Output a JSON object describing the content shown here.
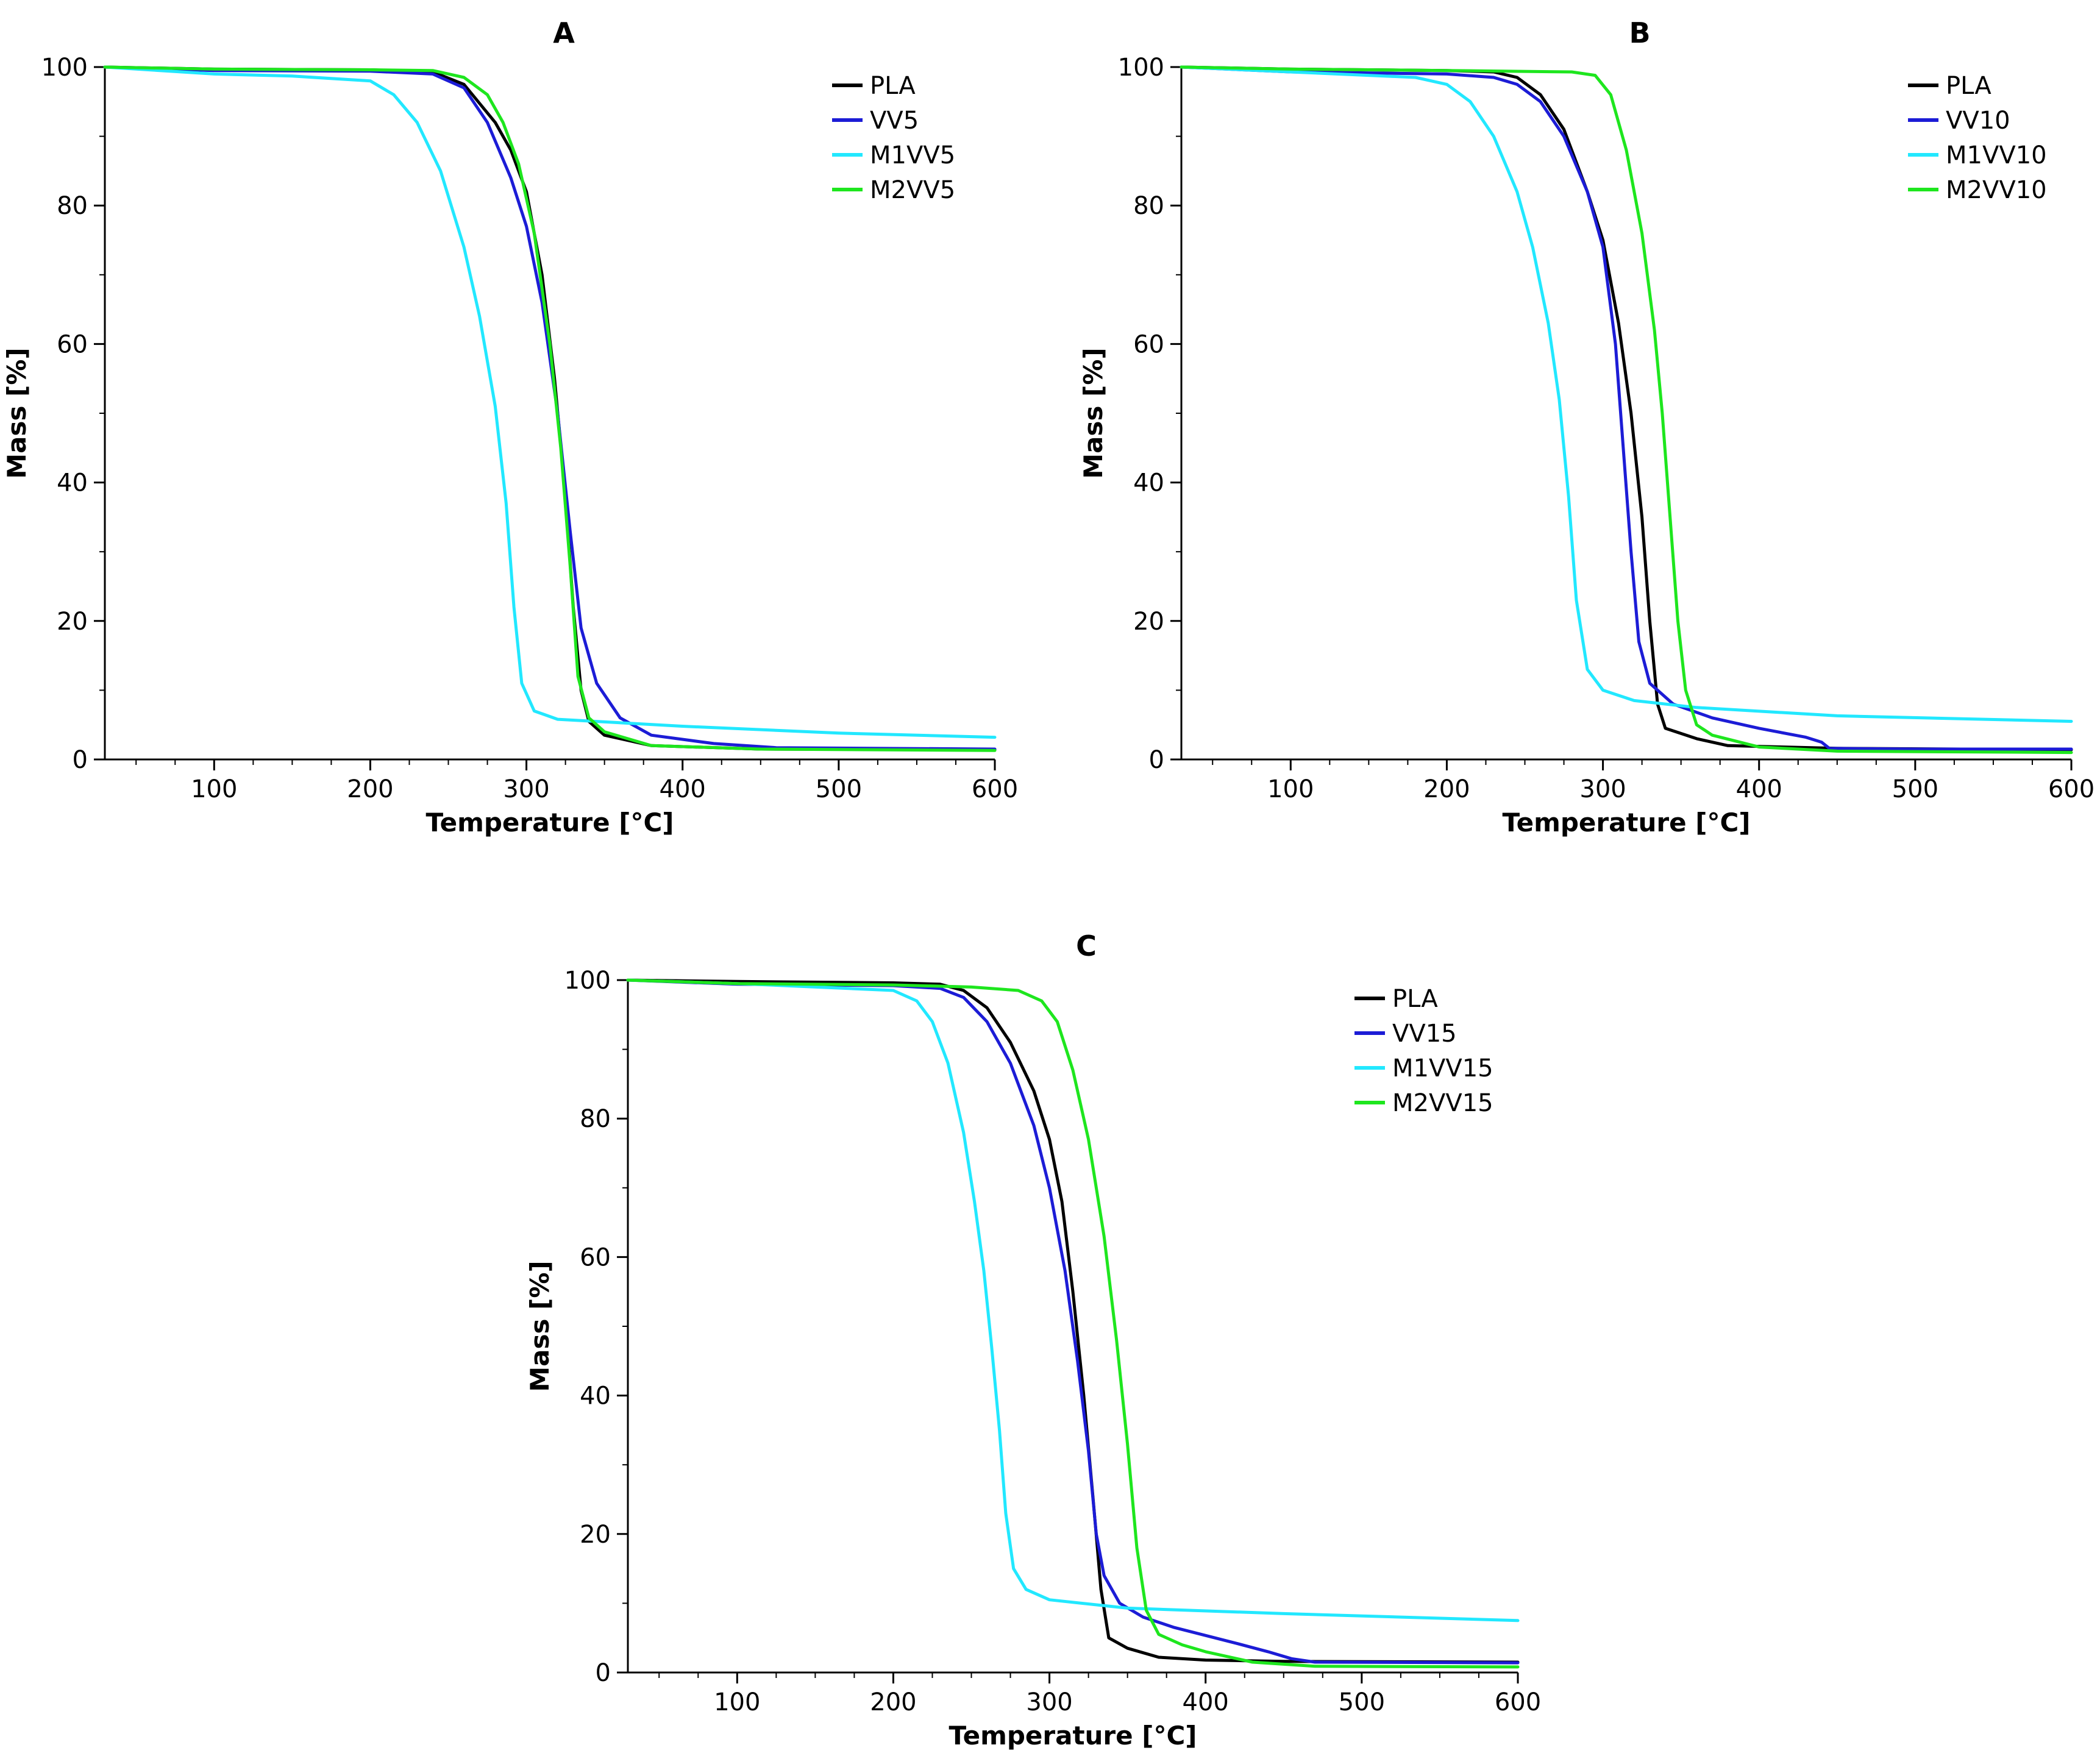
{
  "colors": {
    "PLA": "#000000",
    "VV": "#1c1cd6",
    "M1": "#22e8ff",
    "M2": "#1ee61e",
    "axis": "#000000"
  },
  "chart_data": [
    {
      "type": "line",
      "title": "A",
      "xlabel": "Temperature [°C]",
      "ylabel": "Mass [%]",
      "xlim": [
        30,
        600
      ],
      "ylim": [
        0,
        100
      ],
      "xticks": [
        100,
        200,
        300,
        400,
        500,
        600
      ],
      "yticks": [
        0,
        20,
        40,
        60,
        80,
        100
      ],
      "grid": false,
      "legend_position": "top-right",
      "series": [
        {
          "name": "PLA",
          "color_key": "PLA",
          "points": [
            [
              30,
              100
            ],
            [
              100,
              99.7
            ],
            [
              200,
              99.6
            ],
            [
              240,
              99.3
            ],
            [
              260,
              97.5
            ],
            [
              280,
              92
            ],
            [
              290,
              88
            ],
            [
              300,
              82
            ],
            [
              310,
              70
            ],
            [
              318,
              55
            ],
            [
              325,
              38
            ],
            [
              330,
              22
            ],
            [
              335,
              10
            ],
            [
              340,
              5.5
            ],
            [
              350,
              3.5
            ],
            [
              380,
              2
            ],
            [
              450,
              1.5
            ],
            [
              600,
              1.4
            ]
          ]
        },
        {
          "name": "VV5",
          "color_key": "VV",
          "points": [
            [
              30,
              100
            ],
            [
              100,
              99.5
            ],
            [
              200,
              99.4
            ],
            [
              240,
              99
            ],
            [
              260,
              97
            ],
            [
              275,
              92
            ],
            [
              290,
              84
            ],
            [
              300,
              77
            ],
            [
              310,
              66
            ],
            [
              320,
              50
            ],
            [
              328,
              33
            ],
            [
              335,
              19
            ],
            [
              345,
              11
            ],
            [
              360,
              6
            ],
            [
              380,
              3.5
            ],
            [
              420,
              2.3
            ],
            [
              460,
              1.7
            ],
            [
              600,
              1.5
            ]
          ]
        },
        {
          "name": "M1VV5",
          "color_key": "M1",
          "points": [
            [
              30,
              100
            ],
            [
              100,
              99
            ],
            [
              150,
              98.7
            ],
            [
              200,
              98
            ],
            [
              215,
              96
            ],
            [
              230,
              92
            ],
            [
              245,
              85
            ],
            [
              260,
              74
            ],
            [
              270,
              64
            ],
            [
              280,
              51
            ],
            [
              287,
              37
            ],
            [
              292,
              22
            ],
            [
              297,
              11
            ],
            [
              305,
              7
            ],
            [
              320,
              5.8
            ],
            [
              400,
              4.8
            ],
            [
              500,
              3.8
            ],
            [
              600,
              3.2
            ]
          ]
        },
        {
          "name": "M2VV5",
          "color_key": "M2",
          "points": [
            [
              30,
              100
            ],
            [
              100,
              99.7
            ],
            [
              200,
              99.6
            ],
            [
              240,
              99.5
            ],
            [
              260,
              98.5
            ],
            [
              275,
              96
            ],
            [
              285,
              92
            ],
            [
              295,
              86
            ],
            [
              305,
              76
            ],
            [
              315,
              60
            ],
            [
              322,
              45
            ],
            [
              328,
              28
            ],
            [
              333,
              12
            ],
            [
              340,
              6
            ],
            [
              350,
              4
            ],
            [
              380,
              2
            ],
            [
              450,
              1.5
            ],
            [
              600,
              1.3
            ]
          ]
        }
      ]
    },
    {
      "type": "line",
      "title": "B",
      "xlabel": "Temperature [°C]",
      "ylabel": "Mass [%]",
      "xlim": [
        30,
        600
      ],
      "ylim": [
        0,
        100
      ],
      "xticks": [
        100,
        200,
        300,
        400,
        500,
        600
      ],
      "yticks": [
        0,
        20,
        40,
        60,
        80,
        100
      ],
      "grid": false,
      "legend_position": "top-right",
      "series": [
        {
          "name": "PLA",
          "color_key": "PLA",
          "points": [
            [
              30,
              100
            ],
            [
              100,
              99.7
            ],
            [
              200,
              99.5
            ],
            [
              230,
              99.3
            ],
            [
              245,
              98.5
            ],
            [
              260,
              96
            ],
            [
              275,
              91
            ],
            [
              290,
              82
            ],
            [
              300,
              75
            ],
            [
              310,
              63
            ],
            [
              318,
              50
            ],
            [
              325,
              35
            ],
            [
              330,
              20
            ],
            [
              335,
              8
            ],
            [
              340,
              4.5
            ],
            [
              360,
              3
            ],
            [
              380,
              2
            ],
            [
              450,
              1.6
            ],
            [
              600,
              1.4
            ]
          ]
        },
        {
          "name": "VV10",
          "color_key": "VV",
          "points": [
            [
              30,
              100
            ],
            [
              100,
              99.3
            ],
            [
              200,
              99
            ],
            [
              230,
              98.5
            ],
            [
              245,
              97.5
            ],
            [
              260,
              95
            ],
            [
              275,
              90
            ],
            [
              290,
              82
            ],
            [
              300,
              74
            ],
            [
              308,
              60
            ],
            [
              313,
              45
            ],
            [
              318,
              30
            ],
            [
              323,
              17
            ],
            [
              330,
              11
            ],
            [
              345,
              8
            ],
            [
              370,
              6
            ],
            [
              400,
              4.5
            ],
            [
              430,
              3.2
            ],
            [
              440,
              2.5
            ],
            [
              445,
              1.6
            ],
            [
              500,
              1.5
            ],
            [
              600,
              1.5
            ]
          ]
        },
        {
          "name": "M1VV10",
          "color_key": "M1",
          "points": [
            [
              30,
              100
            ],
            [
              100,
              99.3
            ],
            [
              180,
              98.5
            ],
            [
              200,
              97.5
            ],
            [
              215,
              95
            ],
            [
              230,
              90
            ],
            [
              245,
              82
            ],
            [
              255,
              74
            ],
            [
              265,
              63
            ],
            [
              272,
              52
            ],
            [
              278,
              38
            ],
            [
              283,
              23
            ],
            [
              290,
              13
            ],
            [
              300,
              10
            ],
            [
              320,
              8.5
            ],
            [
              360,
              7.5
            ],
            [
              450,
              6.3
            ],
            [
              600,
              5.5
            ]
          ]
        },
        {
          "name": "M2VV10",
          "color_key": "M2",
          "points": [
            [
              30,
              100
            ],
            [
              100,
              99.7
            ],
            [
              200,
              99.5
            ],
            [
              280,
              99.3
            ],
            [
              295,
              98.8
            ],
            [
              305,
              96
            ],
            [
              315,
              88
            ],
            [
              325,
              76
            ],
            [
              333,
              62
            ],
            [
              338,
              50
            ],
            [
              343,
              35
            ],
            [
              348,
              20
            ],
            [
              353,
              10
            ],
            [
              360,
              5
            ],
            [
              370,
              3.5
            ],
            [
              400,
              1.8
            ],
            [
              450,
              1.2
            ],
            [
              600,
              1
            ]
          ]
        }
      ]
    },
    {
      "type": "line",
      "title": "C",
      "xlabel": "Temperature [°C]",
      "ylabel": "Mass [%]",
      "xlim": [
        30,
        600
      ],
      "ylim": [
        0,
        100
      ],
      "xticks": [
        100,
        200,
        300,
        400,
        500,
        600
      ],
      "yticks": [
        0,
        20,
        40,
        60,
        80,
        100
      ],
      "grid": false,
      "legend_position": "top-right",
      "series": [
        {
          "name": "PLA",
          "color_key": "PLA",
          "points": [
            [
              30,
              100
            ],
            [
              100,
              99.8
            ],
            [
              200,
              99.6
            ],
            [
              230,
              99.4
            ],
            [
              245,
              98.5
            ],
            [
              260,
              96
            ],
            [
              275,
              91
            ],
            [
              290,
              84
            ],
            [
              300,
              77
            ],
            [
              308,
              68
            ],
            [
              315,
              55
            ],
            [
              322,
              40
            ],
            [
              328,
              25
            ],
            [
              333,
              12
            ],
            [
              338,
              5
            ],
            [
              350,
              3.5
            ],
            [
              370,
              2.2
            ],
            [
              400,
              1.8
            ],
            [
              450,
              1.6
            ],
            [
              600,
              1.5
            ]
          ]
        },
        {
          "name": "VV15",
          "color_key": "VV",
          "points": [
            [
              30,
              100
            ],
            [
              100,
              99.4
            ],
            [
              200,
              99.2
            ],
            [
              230,
              98.8
            ],
            [
              245,
              97.5
            ],
            [
              260,
              94
            ],
            [
              275,
              88
            ],
            [
              290,
              79
            ],
            [
              300,
              70
            ],
            [
              310,
              58
            ],
            [
              318,
              45
            ],
            [
              325,
              32
            ],
            [
              330,
              20
            ],
            [
              335,
              14
            ],
            [
              345,
              10
            ],
            [
              360,
              8
            ],
            [
              380,
              6.5
            ],
            [
              420,
              4.2
            ],
            [
              440,
              3
            ],
            [
              455,
              2
            ],
            [
              470,
              1.5
            ],
            [
              600,
              1.4
            ]
          ]
        },
        {
          "name": "M1VV15",
          "color_key": "M1",
          "points": [
            [
              30,
              100
            ],
            [
              100,
              99.5
            ],
            [
              200,
              98.5
            ],
            [
              215,
              97
            ],
            [
              225,
              94
            ],
            [
              235,
              88
            ],
            [
              245,
              78
            ],
            [
              252,
              68
            ],
            [
              258,
              58
            ],
            [
              263,
              47
            ],
            [
              268,
              35
            ],
            [
              272,
              23
            ],
            [
              277,
              15
            ],
            [
              285,
              12
            ],
            [
              300,
              10.5
            ],
            [
              350,
              9.3
            ],
            [
              450,
              8.5
            ],
            [
              600,
              7.5
            ]
          ]
        },
        {
          "name": "M2VV15",
          "color_key": "M2",
          "points": [
            [
              30,
              100
            ],
            [
              100,
              99.5
            ],
            [
              200,
              99.3
            ],
            [
              250,
              99
            ],
            [
              280,
              98.5
            ],
            [
              295,
              97
            ],
            [
              305,
              94
            ],
            [
              315,
              87
            ],
            [
              325,
              77
            ],
            [
              335,
              63
            ],
            [
              343,
              48
            ],
            [
              350,
              33
            ],
            [
              356,
              18
            ],
            [
              362,
              9
            ],
            [
              370,
              5.5
            ],
            [
              385,
              4
            ],
            [
              400,
              3
            ],
            [
              430,
              1.5
            ],
            [
              470,
              0.9
            ],
            [
              600,
              0.8
            ]
          ]
        }
      ]
    }
  ]
}
